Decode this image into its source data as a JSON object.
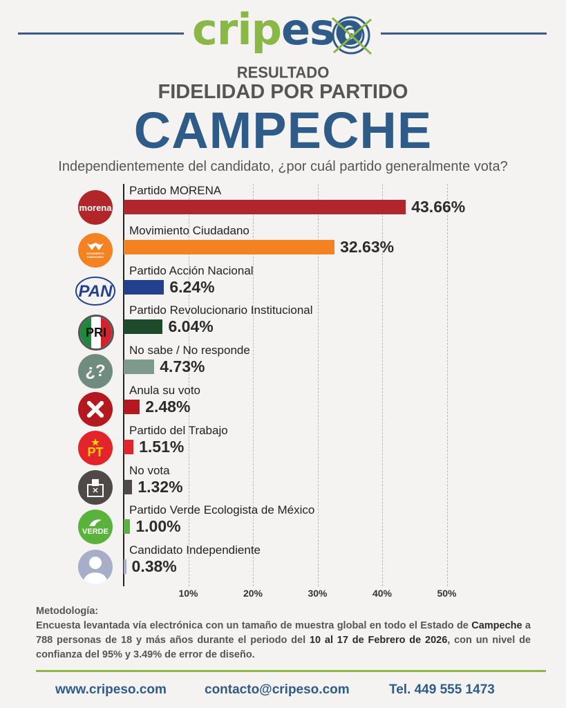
{
  "brand": {
    "logo_part1": "crip",
    "logo_part2": "eso",
    "colors": {
      "blue": "#2f5b88",
      "green": "#8ab846",
      "line": "#3a5a8a"
    }
  },
  "header": {
    "line1": "RESULTADO",
    "line2": "FIDELIDAD POR PARTIDO",
    "line3": "CAMPECHE",
    "question": "Independientemente del candidato, ¿por cuál partido generalmente vota?"
  },
  "chart_data": {
    "type": "bar",
    "orientation": "horizontal",
    "categories": [
      "Partido MORENA",
      "Movimiento Ciudadano",
      "Partido Acción Nacional",
      "Partido Revolucionario Institucional",
      "No sabe / No responde",
      "Anula su voto",
      "Partido del Trabajo",
      "No vota",
      "Partido Verde Ecologista de México",
      "Candidato Independiente"
    ],
    "values": [
      43.66,
      32.63,
      6.24,
      6.04,
      4.73,
      2.48,
      1.51,
      1.32,
      1.0,
      0.38
    ],
    "value_labels": [
      "43.66%",
      "32.63%",
      "6.24%",
      "6.04%",
      "4.73%",
      "2.48%",
      "1.51%",
      "1.32%",
      "1.00%",
      "0.38%"
    ],
    "colors": [
      "#b0262a",
      "#f58220",
      "#23408e",
      "#1d4a2a",
      "#7e9a8c",
      "#b5181e",
      "#e3242b",
      "#4f4a47",
      "#58b23c",
      "#a7aec9"
    ],
    "icons": [
      "morena-logo-icon",
      "movimiento-ciudadano-logo-icon",
      "pan-logo-icon",
      "pri-logo-icon",
      "question-mark-icon",
      "cross-x-icon",
      "pt-logo-icon",
      "ballot-box-icon",
      "verde-logo-icon",
      "person-silhouette-icon"
    ],
    "icon_text": {
      "morena": "morena",
      "mc": "MOVIMIENTO CIUDADANO",
      "pan": "PAN",
      "pt": "PT",
      "verde": "VERDE",
      "nsnr": "¿?"
    },
    "x_ticks": [
      "10%",
      "20%",
      "30%",
      "40%",
      "50%"
    ],
    "x_tick_values": [
      10,
      20,
      30,
      40,
      50
    ],
    "xlim": [
      0,
      50
    ],
    "grid": true,
    "xlabel": "",
    "ylabel": ""
  },
  "methodology": {
    "title": "Metodología:",
    "text1": "Encuesta levantada vía electrónica con un tamaño de muestra global en todo el Estado de ",
    "bold1": "Campeche",
    "text2": " a 788 personas de 18 y más años durante el periodo del ",
    "bold2": "10 al 17 de Febrero de 2026",
    "text3": ", con un nivel de confianza del 95% y 3.49% de error de diseño."
  },
  "footer": {
    "website": "www.cripeso.com",
    "email": "contacto@cripeso.com",
    "phone": "Tel. 449 555 1473"
  }
}
